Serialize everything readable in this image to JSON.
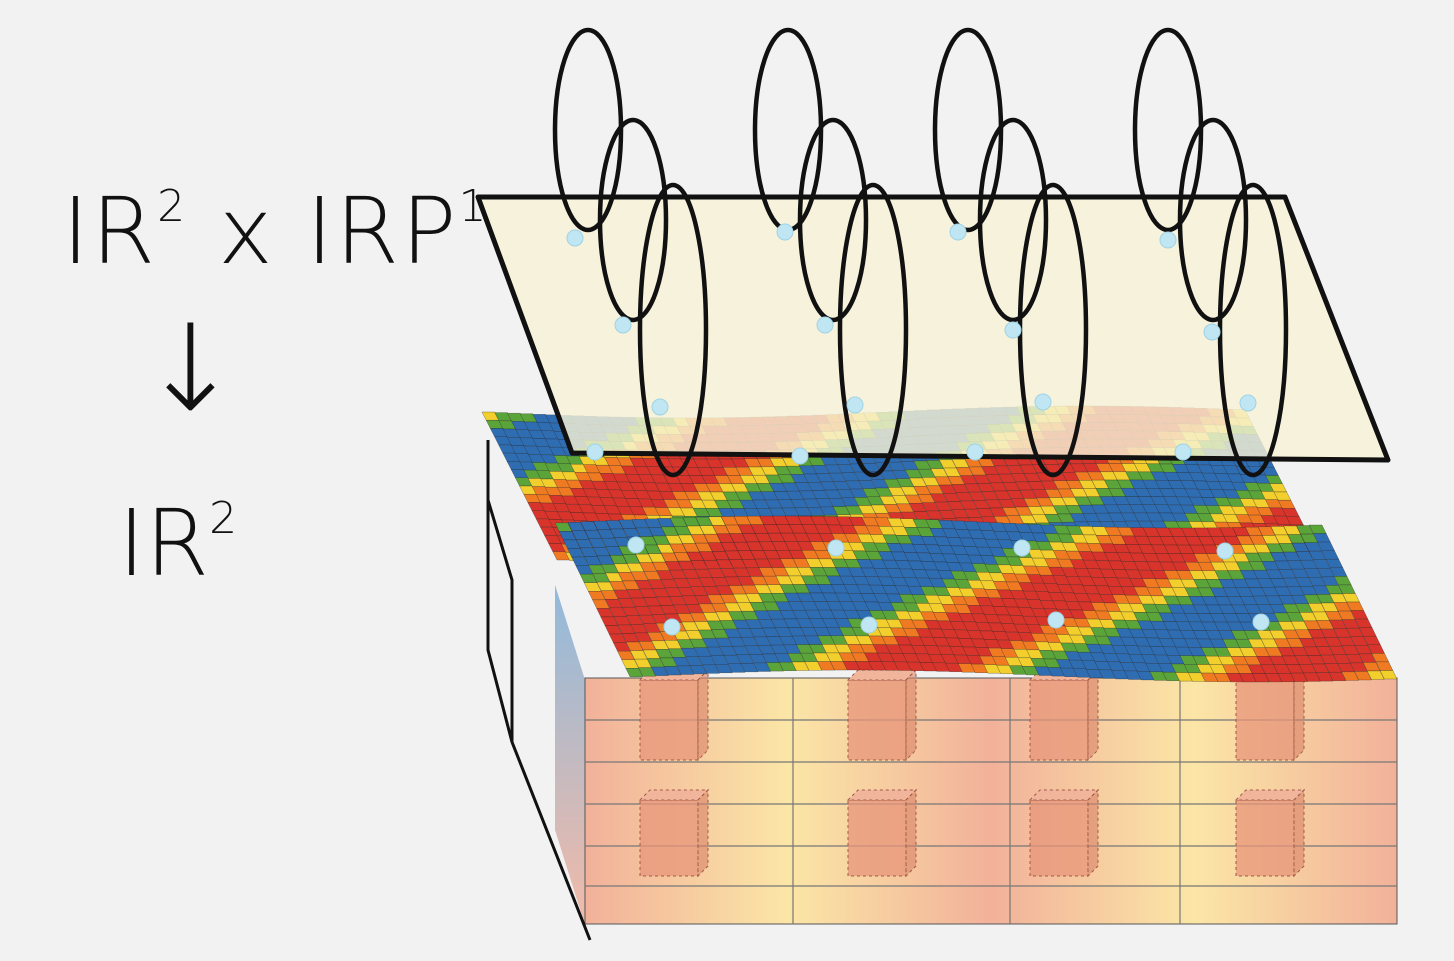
{
  "labels": {
    "total_space": "ℝR²×ℝRP¹",
    "total_main": "IR",
    "total_sup": "2",
    "total_times": " x ",
    "total_main2": "IRP",
    "total_sup2": "1",
    "arrow": "↓",
    "base_main": "IR",
    "base_sup": "2"
  },
  "colors": {
    "plane_fill": "#f7f1d6",
    "plane_stroke": "#111111",
    "fiber_stroke": "#111111",
    "dot": "#bfe6f2",
    "band_palette": [
      "#d9342b",
      "#f07a22",
      "#f2cf2d",
      "#5aa43a",
      "#2f6db3"
    ],
    "block_gradient": [
      "#f2b19a",
      "#fbe6a6",
      "#f2b19a"
    ],
    "cube_fill": "#e7967a"
  },
  "fibers": {
    "groups": 4,
    "circles_per_group": 3
  }
}
